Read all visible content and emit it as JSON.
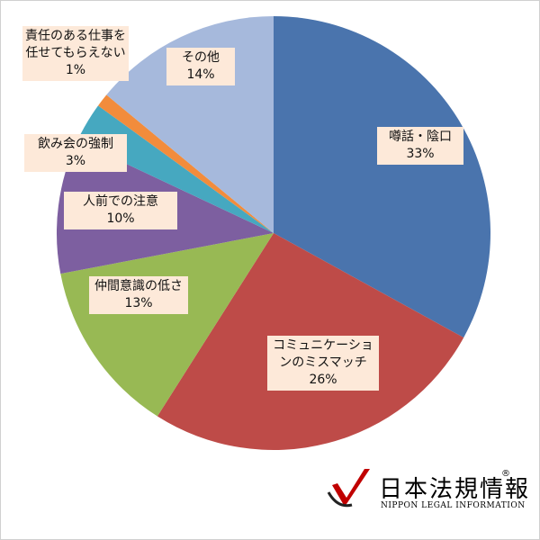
{
  "chart_data": {
    "type": "pie",
    "categories": [
      "噂話・陰口",
      "コミュニケーションのミスマッチ",
      "仲間意識の低さ",
      "人前での注意",
      "飲み会の強制",
      "責任のある仕事を任せてもらえない",
      "その他"
    ],
    "values": [
      33,
      26,
      13,
      10,
      3,
      1,
      14
    ],
    "value_labels": [
      "33%",
      "26%",
      "13%",
      "10%",
      "3%",
      "1%",
      "14%"
    ],
    "colors": [
      "#4a74ad",
      "#be4b48",
      "#98b954",
      "#7d5fa0",
      "#46a8c0",
      "#f28c3c",
      "#a6b9dc"
    ]
  },
  "logo": {
    "name": "日本法規情報",
    "mark": "®",
    "subtitle": "NIPPON LEGAL INFORMATION"
  }
}
